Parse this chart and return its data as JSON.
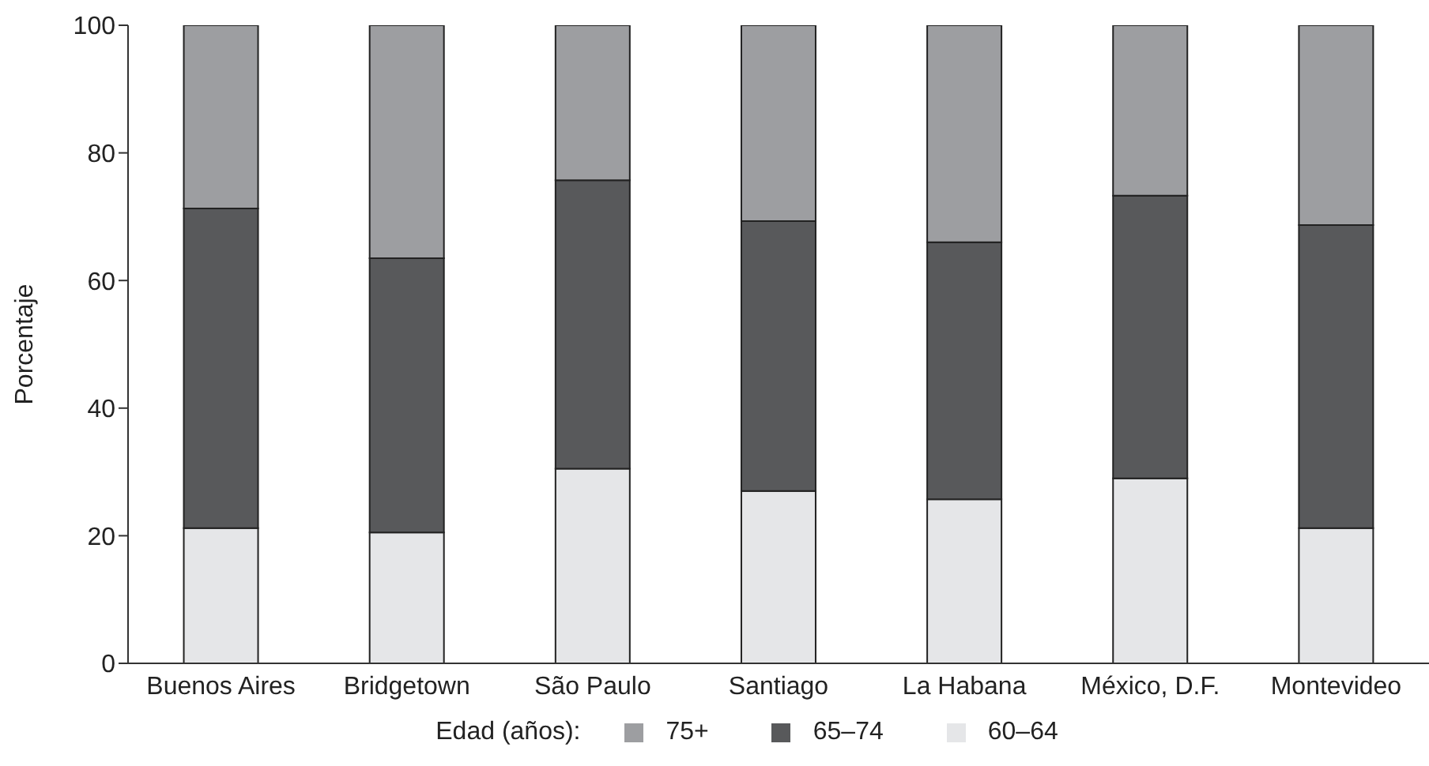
{
  "chart_data": {
    "type": "bar",
    "stacked": true,
    "ylabel": "Porcentaje",
    "legend_title": "Edad (años):",
    "legend": "bottom",
    "categories": [
      "Buenos Aires",
      "Bridgetown",
      "São Paulo",
      "Santiago",
      "La Habana",
      "México, D.F.",
      "Montevideo"
    ],
    "series": [
      {
        "name": "60–64",
        "color": "#e5e6e8",
        "values": [
          21.2,
          20.5,
          30.5,
          27.0,
          25.7,
          29.0,
          21.2
        ]
      },
      {
        "name": "65–74",
        "color": "#58595b",
        "values": [
          50.1,
          43.0,
          45.2,
          42.3,
          40.3,
          44.3,
          47.5
        ]
      },
      {
        "name": "75+",
        "color": "#9d9ea1",
        "values": [
          28.7,
          36.5,
          24.3,
          30.7,
          34.0,
          26.7,
          31.3
        ]
      }
    ],
    "ylim": [
      0,
      100
    ],
    "yticks": [
      0,
      20,
      40,
      60,
      80,
      100
    ]
  }
}
